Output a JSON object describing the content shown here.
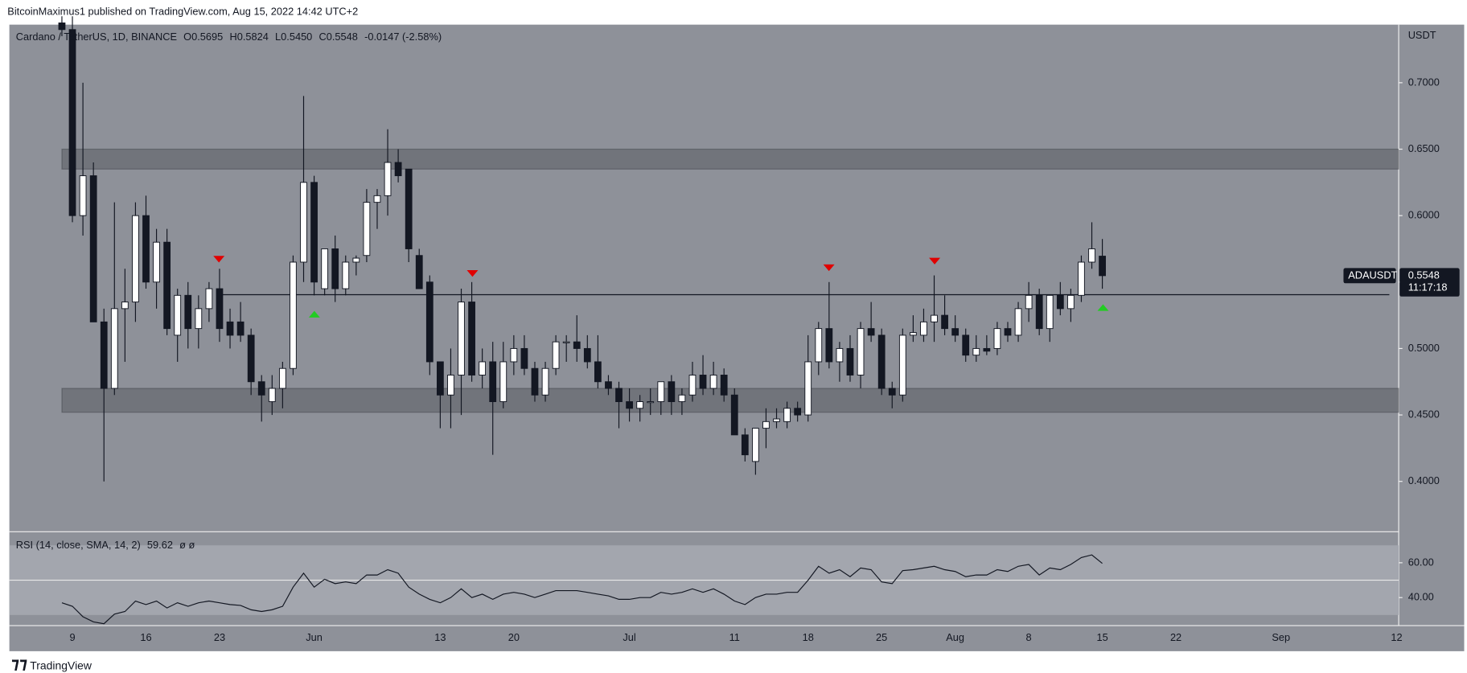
{
  "header": {
    "publisher": "BitcoinMaximus1 published on TradingView.com, Aug 15, 2022 14:42 UTC+2",
    "footer": "TradingView"
  },
  "chart_data": {
    "type": "candlestick",
    "legend": {
      "symbol": "Cardano / TetherUS, 1D, BINANCE",
      "o": "O",
      "open": "0.5695",
      "h": "H",
      "high": "0.5824",
      "l": "L",
      "low": "0.5450",
      "c": "C",
      "close": "0.5548",
      "change": "-0.0147 (-2.58%)"
    },
    "y_axis_label": "USDT",
    "price_tag": {
      "symbol": "ADAUSDT",
      "countdown": "11:17:18"
    },
    "up_color": "#ffffff",
    "down_color": "#131722",
    "categories": [
      null,
      "9",
      null,
      null,
      null,
      null,
      null,
      null,
      "16",
      null,
      null,
      null,
      null,
      null,
      null,
      "23",
      null,
      null,
      null,
      null,
      null,
      null,
      null,
      null,
      "Jun",
      null,
      null,
      null,
      null,
      null,
      null,
      null,
      null,
      null,
      null,
      null,
      "13",
      null,
      null,
      null,
      null,
      null,
      null,
      "20",
      null,
      null,
      null,
      null,
      null,
      null,
      null,
      null,
      null,
      null,
      "Jul",
      null,
      null,
      null,
      null,
      null,
      null,
      null,
      null,
      null,
      "11",
      null,
      null,
      null,
      null,
      null,
      null,
      "18",
      null,
      null,
      null,
      null,
      null,
      null,
      "25",
      null,
      null,
      null,
      null,
      null,
      null,
      "Aug",
      null,
      null,
      null,
      null,
      null,
      null,
      "8",
      null,
      null,
      null,
      null,
      null,
      null,
      "15",
      null,
      null,
      null,
      null,
      null,
      null,
      "22",
      null,
      null,
      null,
      null,
      null,
      null,
      null,
      null,
      null,
      "Sep",
      null,
      null,
      null,
      null,
      null,
      null,
      null,
      null,
      null,
      null,
      "12"
    ],
    "open": [
      0.745,
      0.74,
      0.6,
      0.63,
      0.52,
      0.47,
      0.53,
      0.535,
      0.6,
      0.55,
      0.58,
      0.51,
      0.54,
      0.515,
      0.53,
      0.545,
      0.52,
      0.52,
      0.51,
      0.475,
      0.46,
      0.47,
      0.485,
      0.565,
      0.625,
      0.545,
      0.575,
      0.545,
      0.565,
      0.57,
      0.61,
      0.615,
      0.64,
      0.635,
      0.57,
      0.55,
      0.49,
      0.465,
      0.48,
      0.535,
      0.48,
      0.49,
      0.46,
      0.49,
      0.5,
      0.485,
      0.465,
      0.485,
      0.505,
      0.505,
      0.5,
      0.49,
      0.475,
      0.47,
      0.46,
      0.455,
      0.46,
      0.46,
      0.475,
      0.46,
      0.465,
      0.48,
      0.47,
      0.48,
      0.465,
      0.435,
      0.415,
      0.44,
      0.445,
      0.445,
      0.455,
      0.45,
      0.49,
      0.515,
      0.49,
      0.5,
      0.48,
      0.515,
      0.51,
      0.47,
      0.465,
      0.51,
      0.51,
      0.52,
      0.525,
      0.515,
      0.51,
      0.495,
      0.5,
      0.5,
      0.515,
      0.51,
      0.53,
      0.54,
      0.515,
      0.54,
      0.53,
      0.54,
      0.565,
      0.5695,
      null,
      null,
      null,
      null,
      null,
      null,
      null,
      null,
      null,
      null,
      null,
      null,
      null,
      null,
      null,
      null,
      null,
      null,
      null,
      null,
      null,
      null,
      null,
      null,
      null,
      null,
      null,
      null
    ],
    "high": [
      0.75,
      0.75,
      0.7,
      0.64,
      0.53,
      0.61,
      0.56,
      0.61,
      0.615,
      0.59,
      0.59,
      0.545,
      0.55,
      0.54,
      0.55,
      0.56,
      0.53,
      0.535,
      0.515,
      0.48,
      0.48,
      0.49,
      0.57,
      0.69,
      0.63,
      0.575,
      0.585,
      0.57,
      0.57,
      0.62,
      0.62,
      0.665,
      0.65,
      0.635,
      0.575,
      0.555,
      0.49,
      0.5,
      0.545,
      0.55,
      0.5,
      0.505,
      0.505,
      0.51,
      0.51,
      0.49,
      0.49,
      0.51,
      0.51,
      0.525,
      0.51,
      0.51,
      0.48,
      0.475,
      0.47,
      0.465,
      0.47,
      0.475,
      0.48,
      0.47,
      0.49,
      0.495,
      0.49,
      0.485,
      0.47,
      0.44,
      0.44,
      0.455,
      0.455,
      0.46,
      0.46,
      0.51,
      0.52,
      0.55,
      0.505,
      0.51,
      0.52,
      0.535,
      0.515,
      0.475,
      0.515,
      0.525,
      0.53,
      0.555,
      0.54,
      0.525,
      0.515,
      0.51,
      0.51,
      0.52,
      0.52,
      0.535,
      0.55,
      0.545,
      0.54,
      0.55,
      0.545,
      0.57,
      0.595,
      0.5824,
      null,
      null,
      null,
      null,
      null,
      null,
      null,
      null,
      null,
      null,
      null,
      null,
      null,
      null,
      null,
      null,
      null,
      null,
      null,
      null,
      null,
      null,
      null,
      null,
      null,
      null,
      null,
      null
    ],
    "low": [
      0.735,
      0.595,
      0.585,
      0.52,
      0.4,
      0.465,
      0.49,
      0.52,
      0.545,
      0.53,
      0.51,
      0.49,
      0.5,
      0.5,
      0.52,
      0.505,
      0.5,
      0.505,
      0.465,
      0.445,
      0.45,
      0.455,
      0.48,
      0.55,
      0.54,
      0.54,
      0.535,
      0.54,
      0.555,
      0.565,
      0.59,
      0.6,
      0.625,
      0.565,
      0.545,
      0.48,
      0.44,
      0.44,
      0.45,
      0.475,
      0.47,
      0.42,
      0.455,
      0.48,
      0.48,
      0.46,
      0.46,
      0.48,
      0.49,
      0.49,
      0.485,
      0.47,
      0.465,
      0.44,
      0.445,
      0.445,
      0.45,
      0.45,
      0.45,
      0.45,
      0.46,
      0.465,
      0.465,
      0.46,
      0.435,
      0.415,
      0.405,
      0.425,
      0.44,
      0.44,
      0.445,
      0.445,
      0.48,
      0.485,
      0.475,
      0.475,
      0.47,
      0.505,
      0.465,
      0.455,
      0.46,
      0.505,
      0.505,
      0.505,
      0.51,
      0.505,
      0.49,
      0.49,
      0.495,
      0.495,
      0.505,
      0.505,
      0.52,
      0.51,
      0.505,
      0.525,
      0.52,
      0.535,
      0.56,
      0.545,
      null,
      null,
      null,
      null,
      null,
      null,
      null,
      null,
      null,
      null,
      null,
      null,
      null,
      null,
      null,
      null,
      null,
      null,
      null,
      null,
      null,
      null,
      null,
      null,
      null,
      null,
      null,
      null
    ],
    "close": [
      0.74,
      0.6,
      0.63,
      0.52,
      0.47,
      0.53,
      0.535,
      0.6,
      0.55,
      0.58,
      0.515,
      0.54,
      0.515,
      0.53,
      0.545,
      0.515,
      0.51,
      0.51,
      0.475,
      0.465,
      0.47,
      0.485,
      0.565,
      0.625,
      0.55,
      0.575,
      0.545,
      0.565,
      0.568,
      0.61,
      0.615,
      0.64,
      0.63,
      0.575,
      0.545,
      0.49,
      0.465,
      0.48,
      0.535,
      0.48,
      0.49,
      0.46,
      0.49,
      0.5,
      0.485,
      0.465,
      0.485,
      0.505,
      0.505,
      0.5,
      0.49,
      0.475,
      0.47,
      0.46,
      0.455,
      0.46,
      0.46,
      0.475,
      0.46,
      0.465,
      0.48,
      0.47,
      0.48,
      0.465,
      0.435,
      0.42,
      0.44,
      0.445,
      0.447,
      0.455,
      0.45,
      0.49,
      0.515,
      0.49,
      0.5,
      0.48,
      0.515,
      0.51,
      0.47,
      0.465,
      0.51,
      0.512,
      0.52,
      0.525,
      0.515,
      0.51,
      0.495,
      0.5,
      0.498,
      0.515,
      0.51,
      0.53,
      0.54,
      0.515,
      0.54,
      0.53,
      0.54,
      0.565,
      0.575,
      0.5548,
      null,
      null,
      null,
      null,
      null,
      null,
      null,
      null,
      null,
      null,
      null,
      null,
      null,
      null,
      null,
      null,
      null,
      null,
      null,
      null,
      null,
      null,
      null,
      null,
      null,
      null,
      null,
      null
    ],
    "xlim": [
      -5,
      127.2
    ],
    "ylim": [
      0.3621,
      0.7437
    ],
    "yticks": [
      {
        "value": 0.4,
        "label": "0.4000"
      },
      {
        "value": 0.45,
        "label": "0.4500"
      },
      {
        "value": 0.5,
        "label": "0.5000"
      },
      {
        "value": 0.55,
        "label": "0.5500"
      },
      {
        "value": 0.6,
        "label": "0.6000"
      },
      {
        "value": 0.65,
        "label": "0.6500"
      },
      {
        "value": 0.7,
        "label": "0.7000"
      }
    ],
    "zones": [
      [
        0.635,
        0.65
      ],
      [
        0.452,
        0.47
      ]
    ],
    "level": 0.5405,
    "rsi": {
      "label": "RSI (14, close, SMA, 14, 2)",
      "extra": "ø ø",
      "color": "#131722",
      "ylim": [
        23.9,
        77.8
      ],
      "band": [
        30,
        70
      ],
      "mid": 50,
      "yticks": [
        {
          "value": 40,
          "label": "40.00"
        },
        {
          "value": 60,
          "label": "60.00"
        }
      ],
      "values": [
        37,
        35,
        29,
        26,
        25,
        30.5,
        32,
        38,
        36,
        38,
        34,
        37,
        35,
        37,
        38,
        37,
        36,
        35.5,
        33,
        32,
        33,
        35,
        46,
        54,
        46,
        50.5,
        48,
        49,
        48,
        53,
        53,
        56,
        54,
        46,
        42,
        39,
        37,
        40,
        45,
        40,
        42,
        39,
        42,
        43,
        42,
        40,
        42,
        44,
        44,
        44,
        43,
        42,
        41,
        39,
        39,
        40,
        40,
        43,
        42,
        43,
        45,
        43,
        45,
        42,
        38,
        36,
        40,
        42,
        42,
        43,
        43,
        50,
        58,
        54,
        56,
        52,
        57,
        56,
        49,
        48,
        55.5,
        56,
        57,
        58,
        56,
        55,
        52,
        53,
        53,
        56,
        55,
        58,
        59,
        53,
        57,
        56,
        59,
        63,
        64.5,
        59.62,
        null,
        null,
        null,
        null,
        null,
        null,
        null,
        null,
        null,
        null,
        null,
        null,
        null,
        null,
        null,
        null,
        null,
        null,
        null,
        null,
        null,
        null,
        null,
        null,
        null,
        null,
        null,
        null
      ]
    }
  }
}
